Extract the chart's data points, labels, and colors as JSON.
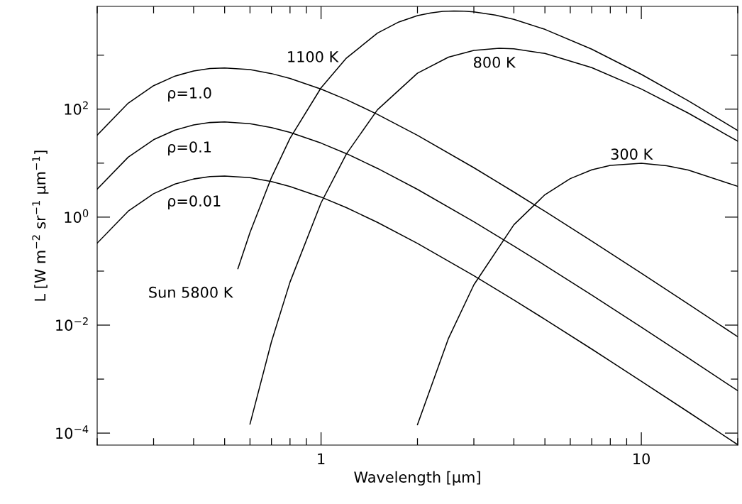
{
  "chart_data": {
    "type": "line",
    "xlabel": "Wavelength [μm]",
    "ylabel": "L [W m$^{−2}$ sr$^{−1}$ μm$^{−1}$]",
    "log": "xy",
    "grid": false,
    "legend": false,
    "marker": "none",
    "line_style": "solid",
    "xlim": [
      0.2,
      20
    ],
    "ylim": [
      6e-05,
      8000
    ],
    "xticks": [
      {
        "value": 0.2,
        "label": null
      },
      {
        "value": 0.3,
        "label": null
      },
      {
        "value": 0.4,
        "label": null
      },
      {
        "value": 0.5,
        "label": null
      },
      {
        "value": 0.6,
        "label": null
      },
      {
        "value": 0.7,
        "label": null
      },
      {
        "value": 0.8,
        "label": null
      },
      {
        "value": 0.9,
        "label": null
      },
      1,
      {
        "value": 2,
        "label": null
      },
      {
        "value": 3,
        "label": null
      },
      {
        "value": 4,
        "label": null
      },
      {
        "value": 5,
        "label": null
      },
      {
        "value": 6,
        "label": null
      },
      {
        "value": 7,
        "label": null
      },
      {
        "value": 8,
        "label": null
      },
      {
        "value": 9,
        "label": null
      },
      10,
      {
        "value": 20,
        "label": null
      }
    ],
    "yticks": [
      {
        "value": 0.0001,
        "label": "10$^{−4}$"
      },
      {
        "value": 0.001,
        "label": null
      },
      {
        "value": 0.01,
        "label": "10$^{−2}$"
      },
      {
        "value": 0.1,
        "label": null
      },
      {
        "value": 1,
        "label": "10$^{0}$"
      },
      {
        "value": 10,
        "label": null
      },
      {
        "value": 100,
        "label": "10$^{2}$"
      },
      {
        "value": 1000,
        "label": null
      }
    ],
    "annotations": [
      {
        "text": "Sun 5800 K",
        "x": 0.55,
        "y": 0.111
      }
    ],
    "series": [
      {
        "name": "ρ=1.0",
        "color": "#000000",
        "x": [
          0.2,
          0.25,
          0.3,
          0.35,
          0.4,
          0.45,
          0.5,
          0.6,
          0.7,
          0.8,
          1,
          1.2,
          1.5,
          2,
          3,
          4,
          5,
          7,
          10,
          14,
          20
        ],
        "values": [
          33,
          129,
          272,
          410,
          509,
          565,
          578,
          539,
          456,
          370,
          235,
          150,
          80,
          32.7,
          8.23,
          2.92,
          1.28,
          0.36,
          0.0914,
          0.0247,
          0.00609
        ]
      },
      {
        "name": "ρ=0.1",
        "color": "#000000",
        "x": [
          0.2,
          0.25,
          0.3,
          0.35,
          0.4,
          0.45,
          0.5,
          0.6,
          0.7,
          0.8,
          1,
          1.2,
          1.5,
          2,
          3,
          4,
          5,
          7,
          10,
          14,
          20
        ],
        "values": [
          3.3,
          12.9,
          27.2,
          41,
          50.9,
          56.5,
          57.8,
          53.9,
          45.6,
          37,
          23.5,
          15,
          8,
          3.27,
          0.823,
          0.292,
          0.128,
          0.036,
          0.00914,
          0.00247,
          0.000609
        ]
      },
      {
        "name": "ρ=0.01",
        "color": "#000000",
        "x": [
          0.2,
          0.25,
          0.3,
          0.35,
          0.4,
          0.45,
          0.5,
          0.6,
          0.7,
          0.8,
          1,
          1.2,
          1.5,
          2,
          3,
          4,
          5,
          7,
          10,
          14,
          20
        ],
        "values": [
          0.33,
          1.29,
          2.72,
          4.1,
          5.09,
          5.65,
          5.78,
          5.39,
          4.56,
          3.7,
          2.35,
          1.5,
          0.8,
          0.327,
          0.0823,
          0.0292,
          0.0128,
          0.0036,
          0.000914,
          0.000247,
          6.09e-05
        ]
      },
      {
        "name": "1100 K",
        "color": "#000000",
        "x": [
          0.55,
          0.6,
          0.7,
          0.8,
          1,
          1.2,
          1.5,
          1.75,
          2,
          2.2,
          2.4,
          2.6,
          2.8,
          3,
          3.5,
          4,
          5,
          7,
          10,
          14,
          20
        ],
        "values": [
          0.111,
          0.519,
          5.41,
          28.8,
          248,
          883,
          2558,
          4122,
          5386,
          6067,
          6453,
          6591,
          6541,
          6340,
          5535,
          4597,
          3006,
          1293,
          441,
          143,
          40.3
        ]
      },
      {
        "name": "800 K",
        "color": "#000000",
        "x": [
          0.6,
          0.7,
          0.8,
          1,
          1.2,
          1.5,
          2,
          2.5,
          3,
          3.6,
          4,
          5,
          7,
          10,
          14,
          20
        ],
        "values": [
          0.000147,
          0.0049,
          0.0627,
          1.84,
          14.8,
          97.4,
          463,
          917,
          1224,
          1342,
          1311,
          1074,
          588,
          236,
          84.7,
          25.5
        ]
      },
      {
        "name": "300 K",
        "color": "#000000",
        "x": [
          2,
          2.5,
          3,
          4,
          5,
          6,
          7,
          8,
          10,
          12,
          14,
          20
        ],
        "values": [
          0.000143,
          0.0057,
          0.0557,
          0.722,
          2.6,
          5.17,
          7.51,
          9.08,
          9.93,
          8.96,
          7.44,
          3.72
        ]
      }
    ]
  }
}
